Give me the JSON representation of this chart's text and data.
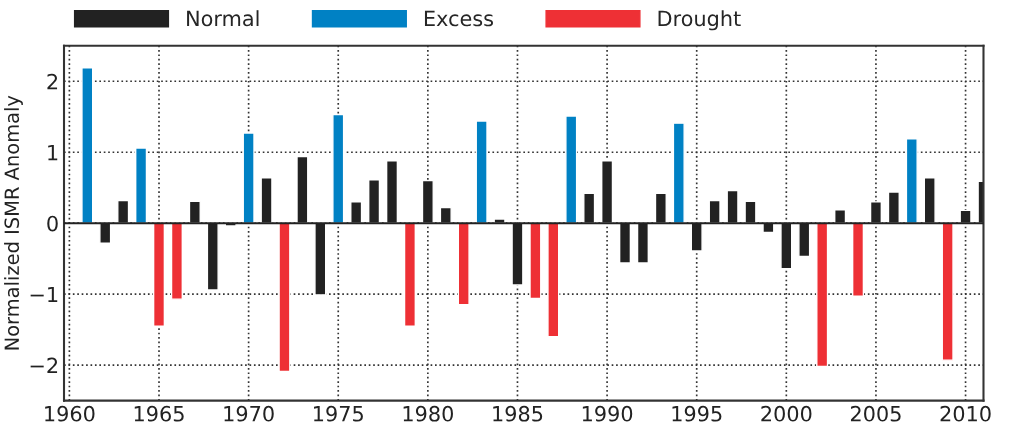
{
  "chart_data": {
    "type": "bar",
    "ylabel": "Normalized ISMR Anomaly",
    "x": [
      1961,
      1962,
      1963,
      1964,
      1965,
      1966,
      1967,
      1968,
      1969,
      1970,
      1971,
      1972,
      1973,
      1974,
      1975,
      1976,
      1977,
      1978,
      1979,
      1980,
      1981,
      1982,
      1983,
      1984,
      1985,
      1986,
      1987,
      1988,
      1989,
      1990,
      1991,
      1992,
      1993,
      1994,
      1995,
      1996,
      1997,
      1998,
      1999,
      2000,
      2001,
      2002,
      2003,
      2004,
      2005,
      2006,
      2007,
      2008,
      2009,
      2010,
      2011
    ],
    "series": [
      {
        "name": "Normal",
        "color": "#222222",
        "values": [
          null,
          -0.28,
          0.32,
          null,
          null,
          null,
          0.31,
          -0.94,
          -0.04,
          null,
          0.64,
          null,
          0.94,
          -1.01,
          null,
          0.3,
          0.61,
          0.88,
          null,
          0.6,
          0.22,
          null,
          null,
          0.06,
          -0.87,
          null,
          null,
          null,
          0.42,
          0.88,
          -0.56,
          -0.56,
          0.42,
          null,
          -0.39,
          0.32,
          0.46,
          0.31,
          -0.13,
          -0.64,
          -0.47,
          null,
          0.19,
          null,
          0.3,
          0.44,
          null,
          0.64,
          null,
          0.18,
          0.59
        ]
      },
      {
        "name": "Excess",
        "color": "#0081c4",
        "values": [
          2.19,
          null,
          null,
          1.06,
          null,
          null,
          null,
          null,
          null,
          1.27,
          null,
          null,
          null,
          null,
          1.53,
          null,
          null,
          null,
          null,
          null,
          null,
          null,
          1.44,
          null,
          null,
          null,
          null,
          1.51,
          null,
          null,
          null,
          null,
          null,
          1.41,
          null,
          null,
          null,
          null,
          null,
          null,
          null,
          null,
          null,
          null,
          null,
          null,
          1.19,
          null,
          null,
          null,
          null
        ]
      },
      {
        "name": "Drought",
        "color": "#ee3035",
        "values": [
          null,
          null,
          null,
          null,
          -1.45,
          -1.07,
          null,
          null,
          null,
          null,
          null,
          -2.09,
          null,
          null,
          null,
          null,
          null,
          null,
          -1.45,
          null,
          null,
          -1.15,
          null,
          null,
          null,
          -1.06,
          -1.6,
          null,
          null,
          null,
          null,
          null,
          null,
          null,
          null,
          null,
          null,
          null,
          null,
          null,
          null,
          -2.02,
          null,
          -1.03,
          null,
          null,
          null,
          null,
          -1.93,
          null,
          null
        ]
      }
    ],
    "xlim": [
      1959.7,
      2011.0
    ],
    "xticks": [
      1960,
      1965,
      1970,
      1975,
      1980,
      1985,
      1990,
      1995,
      2000,
      2005,
      2010
    ],
    "ylim": [
      -2.5,
      2.5
    ],
    "yticks": [
      -2,
      -1,
      0,
      1,
      2
    ],
    "ref_lines": [
      {
        "axis": "y",
        "value": 0,
        "color": "#222222",
        "line_style": "solid"
      }
    ],
    "grid": true,
    "legend": "top",
    "line_style": "dotted"
  }
}
